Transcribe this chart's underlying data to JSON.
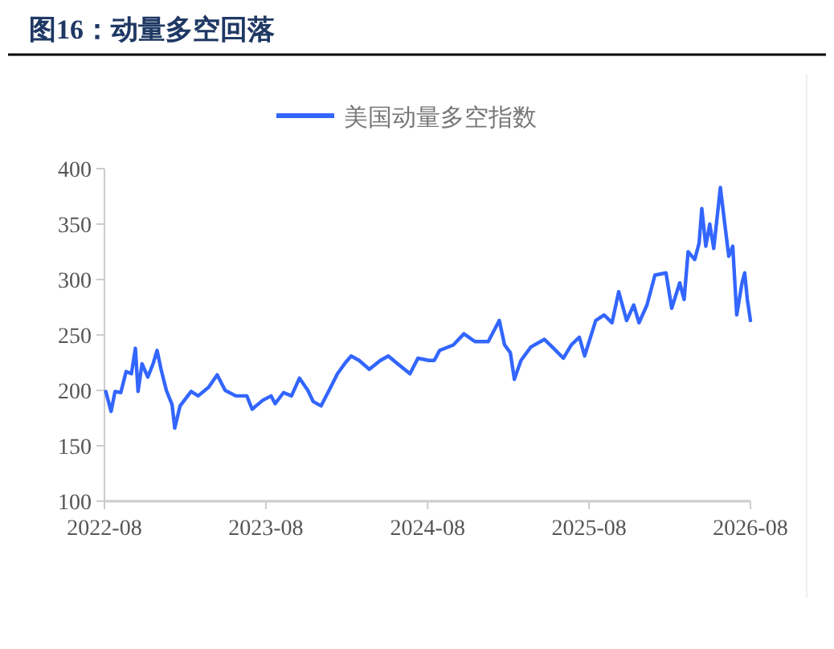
{
  "chart_data": {
    "type": "line",
    "title": "图16：动量多空回落",
    "x": [
      "2022-08-04",
      "2022-08-16",
      "2022-08-25",
      "2022-09-07",
      "2022-09-19",
      "2022-10-01",
      "2022-10-10",
      "2022-10-16",
      "2022-10-25",
      "2022-11-07",
      "2022-11-19",
      "2022-11-28",
      "2022-12-07",
      "2022-12-19",
      "2023-01-01",
      "2023-01-07",
      "2023-01-19",
      "2023-02-13",
      "2023-03-01",
      "2023-03-25",
      "2023-04-13",
      "2023-05-01",
      "2023-05-25",
      "2023-06-19",
      "2023-07-01",
      "2023-07-25",
      "2023-08-13",
      "2023-08-22",
      "2023-09-10",
      "2023-09-28",
      "2023-10-16",
      "2023-11-04",
      "2023-11-16",
      "2023-12-04",
      "2023-12-22",
      "2024-01-10",
      "2024-01-28",
      "2024-02-10",
      "2024-02-28",
      "2024-03-22",
      "2024-04-16",
      "2024-05-04",
      "2024-05-22",
      "2024-06-22",
      "2024-07-10",
      "2024-08-04",
      "2024-08-16",
      "2024-08-28",
      "2024-09-28",
      "2024-10-22",
      "2024-11-16",
      "2024-12-16",
      "2025-01-10",
      "2025-01-22",
      "2025-02-04",
      "2025-02-13",
      "2025-02-28",
      "2025-03-22",
      "2025-04-22",
      "2025-05-10",
      "2025-06-04",
      "2025-06-22",
      "2025-07-10",
      "2025-07-22",
      "2025-08-16",
      "2025-09-04",
      "2025-09-22",
      "2025-10-07",
      "2025-10-25",
      "2025-11-10",
      "2025-11-22",
      "2025-12-10",
      "2025-12-28",
      "2026-01-22",
      "2026-02-04",
      "2026-02-22",
      "2026-03-04",
      "2026-03-13",
      "2026-03-28",
      "2026-04-07",
      "2026-04-13",
      "2026-04-22",
      "2026-05-01",
      "2026-05-10",
      "2026-05-25",
      "2026-06-04",
      "2026-06-13",
      "2026-06-22",
      "2026-07-01",
      "2026-07-13",
      "2026-07-19",
      "2026-07-25",
      "2026-08-01"
    ],
    "series": [
      {
        "name": "美国动量多空指数",
        "color": "#3366ff",
        "values": [
          199,
          181,
          199,
          198,
          217,
          215,
          238,
          199,
          224,
          212,
          224,
          236,
          219,
          200,
          187,
          166,
          186,
          199,
          195,
          203,
          214,
          200,
          195,
          195,
          183,
          191,
          195,
          188,
          198,
          195,
          211,
          200,
          190,
          186,
          200,
          215,
          225,
          231,
          227,
          219,
          227,
          231,
          225,
          215,
          229,
          227,
          227,
          236,
          241,
          251,
          244,
          244,
          263,
          241,
          234,
          210,
          227,
          239,
          246,
          239,
          229,
          241,
          248,
          231,
          263,
          268,
          261,
          289,
          263,
          277,
          261,
          277,
          304,
          306,
          274,
          297,
          282,
          325,
          318,
          333,
          364,
          330,
          350,
          328,
          383,
          350,
          321,
          330,
          268,
          297,
          306,
          282,
          263
        ]
      }
    ],
    "xlim": [
      "2022-08",
      "2026-08"
    ],
    "xticks": [
      "2022-08",
      "2023-08",
      "2024-08",
      "2025-08",
      "2026-08"
    ],
    "ylim": [
      100,
      400
    ],
    "yticks": [
      100,
      150,
      200,
      250,
      300,
      350,
      400
    ],
    "legend": "top",
    "grid": false,
    "marker": "none",
    "line_style": "solid"
  }
}
